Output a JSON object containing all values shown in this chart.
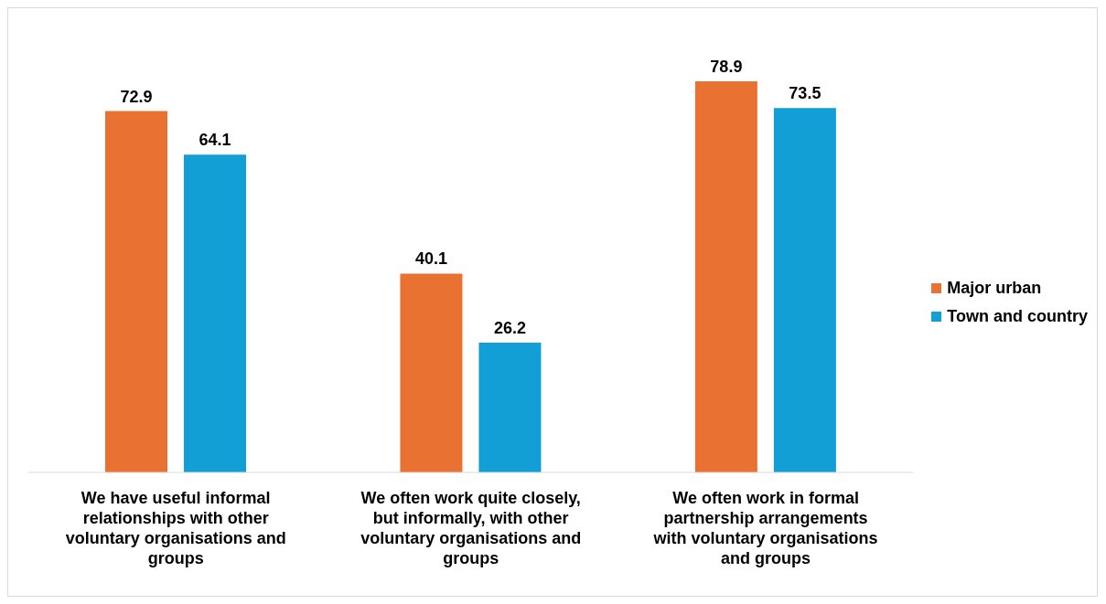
{
  "chart_data": {
    "type": "bar",
    "categories": [
      "We have useful informal relationships with other voluntary organisations and groups",
      "We often work quite closely, but informally, with other voluntary organisations and groups",
      "We often work in formal partnership arrangements with voluntary organisations and groups"
    ],
    "series": [
      {
        "name": "Major urban",
        "color": "#e97132",
        "values": [
          72.9,
          40.1,
          78.9
        ]
      },
      {
        "name": "Town and country",
        "color": "#119fd6",
        "values": [
          64.1,
          26.2,
          73.5
        ]
      }
    ],
    "data_labels": true,
    "legend": "right",
    "grid": false
  }
}
